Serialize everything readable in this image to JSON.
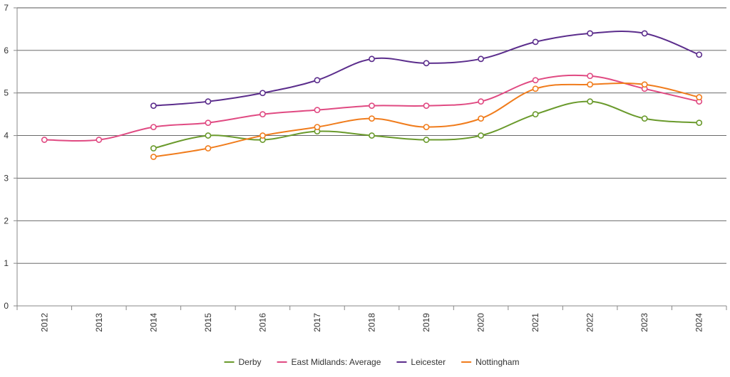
{
  "chart_data": {
    "type": "line",
    "title": "",
    "xlabel": "",
    "ylabel": "",
    "x": [
      "2012",
      "2013",
      "2014",
      "2015",
      "2016",
      "2017",
      "2018",
      "2019",
      "2020",
      "2021",
      "2022",
      "2023",
      "2024"
    ],
    "ylim": [
      0,
      7
    ],
    "yticks": [
      "0",
      "1",
      "2",
      "3",
      "4",
      "5",
      "6",
      "7"
    ],
    "grid": "horizontal",
    "legend_position": "bottom",
    "series": [
      {
        "name": "Derby",
        "color": "#6a9a2c",
        "values": [
          null,
          null,
          3.7,
          4.0,
          3.9,
          4.1,
          4.0,
          3.9,
          4.0,
          4.5,
          4.8,
          4.4,
          4.3
        ]
      },
      {
        "name": "East Midlands: Average",
        "color": "#e04a82",
        "values": [
          3.9,
          3.9,
          4.2,
          4.3,
          4.5,
          4.6,
          4.7,
          4.7,
          4.8,
          5.3,
          5.4,
          5.1,
          4.8
        ]
      },
      {
        "name": "Leicester",
        "color": "#5b2d8c",
        "values": [
          null,
          null,
          4.7,
          4.8,
          5.0,
          5.3,
          5.8,
          5.7,
          5.8,
          6.2,
          6.4,
          6.4,
          5.9
        ]
      },
      {
        "name": "Nottingham",
        "color": "#f07c1c",
        "values": [
          null,
          null,
          3.5,
          3.7,
          4.0,
          4.2,
          4.4,
          4.2,
          4.4,
          5.1,
          5.2,
          5.2,
          4.9
        ]
      }
    ]
  }
}
